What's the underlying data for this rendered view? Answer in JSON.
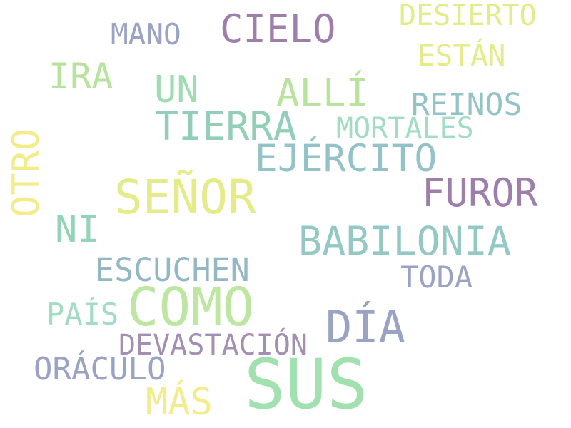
{
  "words": [
    {
      "text": "DESIERTO",
      "color": "#e3ec88"
    },
    {
      "text": "CIELO",
      "color": "#9e7eaa"
    },
    {
      "text": "MANO",
      "color": "#9aa3c3"
    },
    {
      "text": "ESTÁN",
      "color": "#e3ec88"
    },
    {
      "text": "IRA",
      "color": "#b7e39d"
    },
    {
      "text": "UN",
      "color": "#9fdcb2"
    },
    {
      "text": "ALLÍ",
      "color": "#b7e39d"
    },
    {
      "text": "REINOS",
      "color": "#93c3c7"
    },
    {
      "text": "TIERRA",
      "color": "#93cfb8"
    },
    {
      "text": "MORTALES",
      "color": "#a3dcc4"
    },
    {
      "text": "EJÉRCITO",
      "color": "#93c3c7"
    },
    {
      "text": "OTRO",
      "color": "#f2ec8b"
    },
    {
      "text": "SEÑOR",
      "color": "#e3ec88"
    },
    {
      "text": "FUROR",
      "color": "#9e7eaa"
    },
    {
      "text": "NI",
      "color": "#93d4b8"
    },
    {
      "text": "BABILONIA",
      "color": "#93c8c4"
    },
    {
      "text": "ESCUCHEN",
      "color": "#93b8c4"
    },
    {
      "text": "TODA",
      "color": "#9aa3c3"
    },
    {
      "text": "COMO",
      "color": "#bde6a1"
    },
    {
      "text": "PAÍS",
      "color": "#a3dcc4"
    },
    {
      "text": "DÍA",
      "color": "#9aa3c3"
    },
    {
      "text": "DEVASTACIÓN",
      "color": "#a38fb2"
    },
    {
      "text": "ORÁCULO",
      "color": "#9aa3c3"
    },
    {
      "text": "SUS",
      "color": "#a1e0af"
    },
    {
      "text": "MÁS",
      "color": "#f2ec8b"
    }
  ]
}
